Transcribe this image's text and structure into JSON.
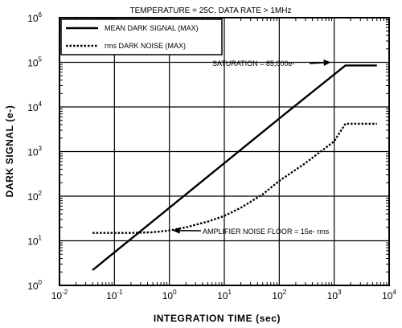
{
  "chart_data": {
    "type": "line",
    "title": "TEMPERATURE = 25C, DATA RATE > 1MHz",
    "xlabel": "INTEGRATION TIME (sec)",
    "ylabel": "DARK SIGNAL (e-)",
    "x_scale": "log",
    "y_scale": "log",
    "xlim": [
      0.01,
      10000
    ],
    "ylim": [
      1,
      1000000
    ],
    "grid": true,
    "legend_position": "top-left",
    "x_ticks": [
      {
        "base": "10",
        "exp": "-2",
        "value": 0.01
      },
      {
        "base": "10",
        "exp": "-1",
        "value": 0.1
      },
      {
        "base": "10",
        "exp": "0",
        "value": 1
      },
      {
        "base": "10",
        "exp": "1",
        "value": 10
      },
      {
        "base": "10",
        "exp": "2",
        "value": 100
      },
      {
        "base": "10",
        "exp": "3",
        "value": 1000
      },
      {
        "base": "10",
        "exp": "4",
        "value": 10000
      }
    ],
    "y_ticks": [
      {
        "base": "10",
        "exp": "0",
        "value": 1
      },
      {
        "base": "10",
        "exp": "1",
        "value": 10
      },
      {
        "base": "10",
        "exp": "2",
        "value": 100
      },
      {
        "base": "10",
        "exp": "3",
        "value": 1000
      },
      {
        "base": "10",
        "exp": "4",
        "value": 10000
      },
      {
        "base": "10",
        "exp": "5",
        "value": 100000
      },
      {
        "base": "10",
        "exp": "6",
        "value": 1000000
      }
    ],
    "series": [
      {
        "name": "MEAN DARK SIGNAL (MAX)",
        "style": "solid",
        "color": "#000000",
        "x": [
          0.04,
          1,
          10,
          100,
          1600,
          6000
        ],
        "y": [
          2.2,
          55,
          550,
          5500,
          85000,
          85000
        ]
      },
      {
        "name": "rms DARK NOISE (MAX)",
        "style": "dotted",
        "color": "#000000",
        "x": [
          0.04,
          0.2,
          0.5,
          1,
          2,
          5,
          10,
          20,
          50,
          100,
          300,
          1000,
          1600,
          6000
        ],
        "y": [
          15,
          15,
          15.5,
          17,
          20,
          27,
          36,
          55,
          110,
          220,
          550,
          1700,
          4200,
          4200
        ]
      }
    ],
    "annotations": [
      {
        "id": "saturation",
        "text": "SATURATION = 85,000e-",
        "arrow_to_x": 1000,
        "arrow_to_y": 100000
      },
      {
        "id": "noise-floor",
        "text": "AMPLIFIER NOISE FLOOR = 15e- rms",
        "arrow_to_x": 1,
        "arrow_to_y": 17
      }
    ]
  }
}
